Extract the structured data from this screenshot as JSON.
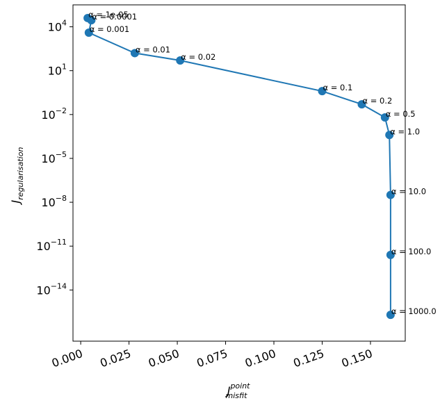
{
  "chart_data": {
    "type": "line",
    "title": "",
    "xlabel": {
      "main": "J",
      "sup": "point",
      "sub": "misfit"
    },
    "ylabel": {
      "main": "J",
      "sub": "regularisation"
    },
    "xlim": [
      -0.004,
      0.168
    ],
    "ylim_log10": [
      -17.5,
      5.5
    ],
    "y_scale": "log",
    "grid": false,
    "legend": "none",
    "x_ticks": [
      {
        "value": 0.0,
        "label": "0.000"
      },
      {
        "value": 0.025,
        "label": "0.025"
      },
      {
        "value": 0.05,
        "label": "0.050"
      },
      {
        "value": 0.075,
        "label": "0.075"
      },
      {
        "value": 0.1,
        "label": "0.100"
      },
      {
        "value": 0.125,
        "label": "0.125"
      },
      {
        "value": 0.15,
        "label": "0.150"
      }
    ],
    "y_ticks": [
      {
        "exp": 4,
        "base": "10",
        "power": "4"
      },
      {
        "exp": 1,
        "base": "10",
        "power": "1"
      },
      {
        "exp": -2,
        "base": "10",
        "power": "−2"
      },
      {
        "exp": -5,
        "base": "10",
        "power": "−5"
      },
      {
        "exp": -8,
        "base": "10",
        "power": "−8"
      },
      {
        "exp": -11,
        "base": "10",
        "power": "−11"
      },
      {
        "exp": -14,
        "base": "10",
        "power": "−14"
      }
    ],
    "series": [
      {
        "color": "#1f77b4",
        "points": [
          {
            "x": 0.0036,
            "y_log10": 4.6,
            "label": "α = 1e-05"
          },
          {
            "x": 0.0055,
            "y_log10": 4.45,
            "label": "α = 0.0001"
          },
          {
            "x": 0.0042,
            "y_log10": 3.6,
            "label": "α = 0.001"
          },
          {
            "x": 0.028,
            "y_log10": 2.2,
            "label": "α = 0.01"
          },
          {
            "x": 0.0515,
            "y_log10": 1.7,
            "label": "α = 0.02"
          },
          {
            "x": 0.125,
            "y_log10": -0.4,
            "label": "α = 0.1"
          },
          {
            "x": 0.1455,
            "y_log10": -1.3,
            "label": "α = 0.2"
          },
          {
            "x": 0.1575,
            "y_log10": -2.2,
            "label": "α = 0.5"
          },
          {
            "x": 0.1598,
            "y_log10": -3.4,
            "label": "α = 1.0"
          },
          {
            "x": 0.1604,
            "y_log10": -7.5,
            "label": "α = 10.0"
          },
          {
            "x": 0.1604,
            "y_log10": -11.6,
            "label": "α = 100.0"
          },
          {
            "x": 0.1604,
            "y_log10": -15.7,
            "label": "α = 1000.0"
          }
        ]
      }
    ]
  }
}
